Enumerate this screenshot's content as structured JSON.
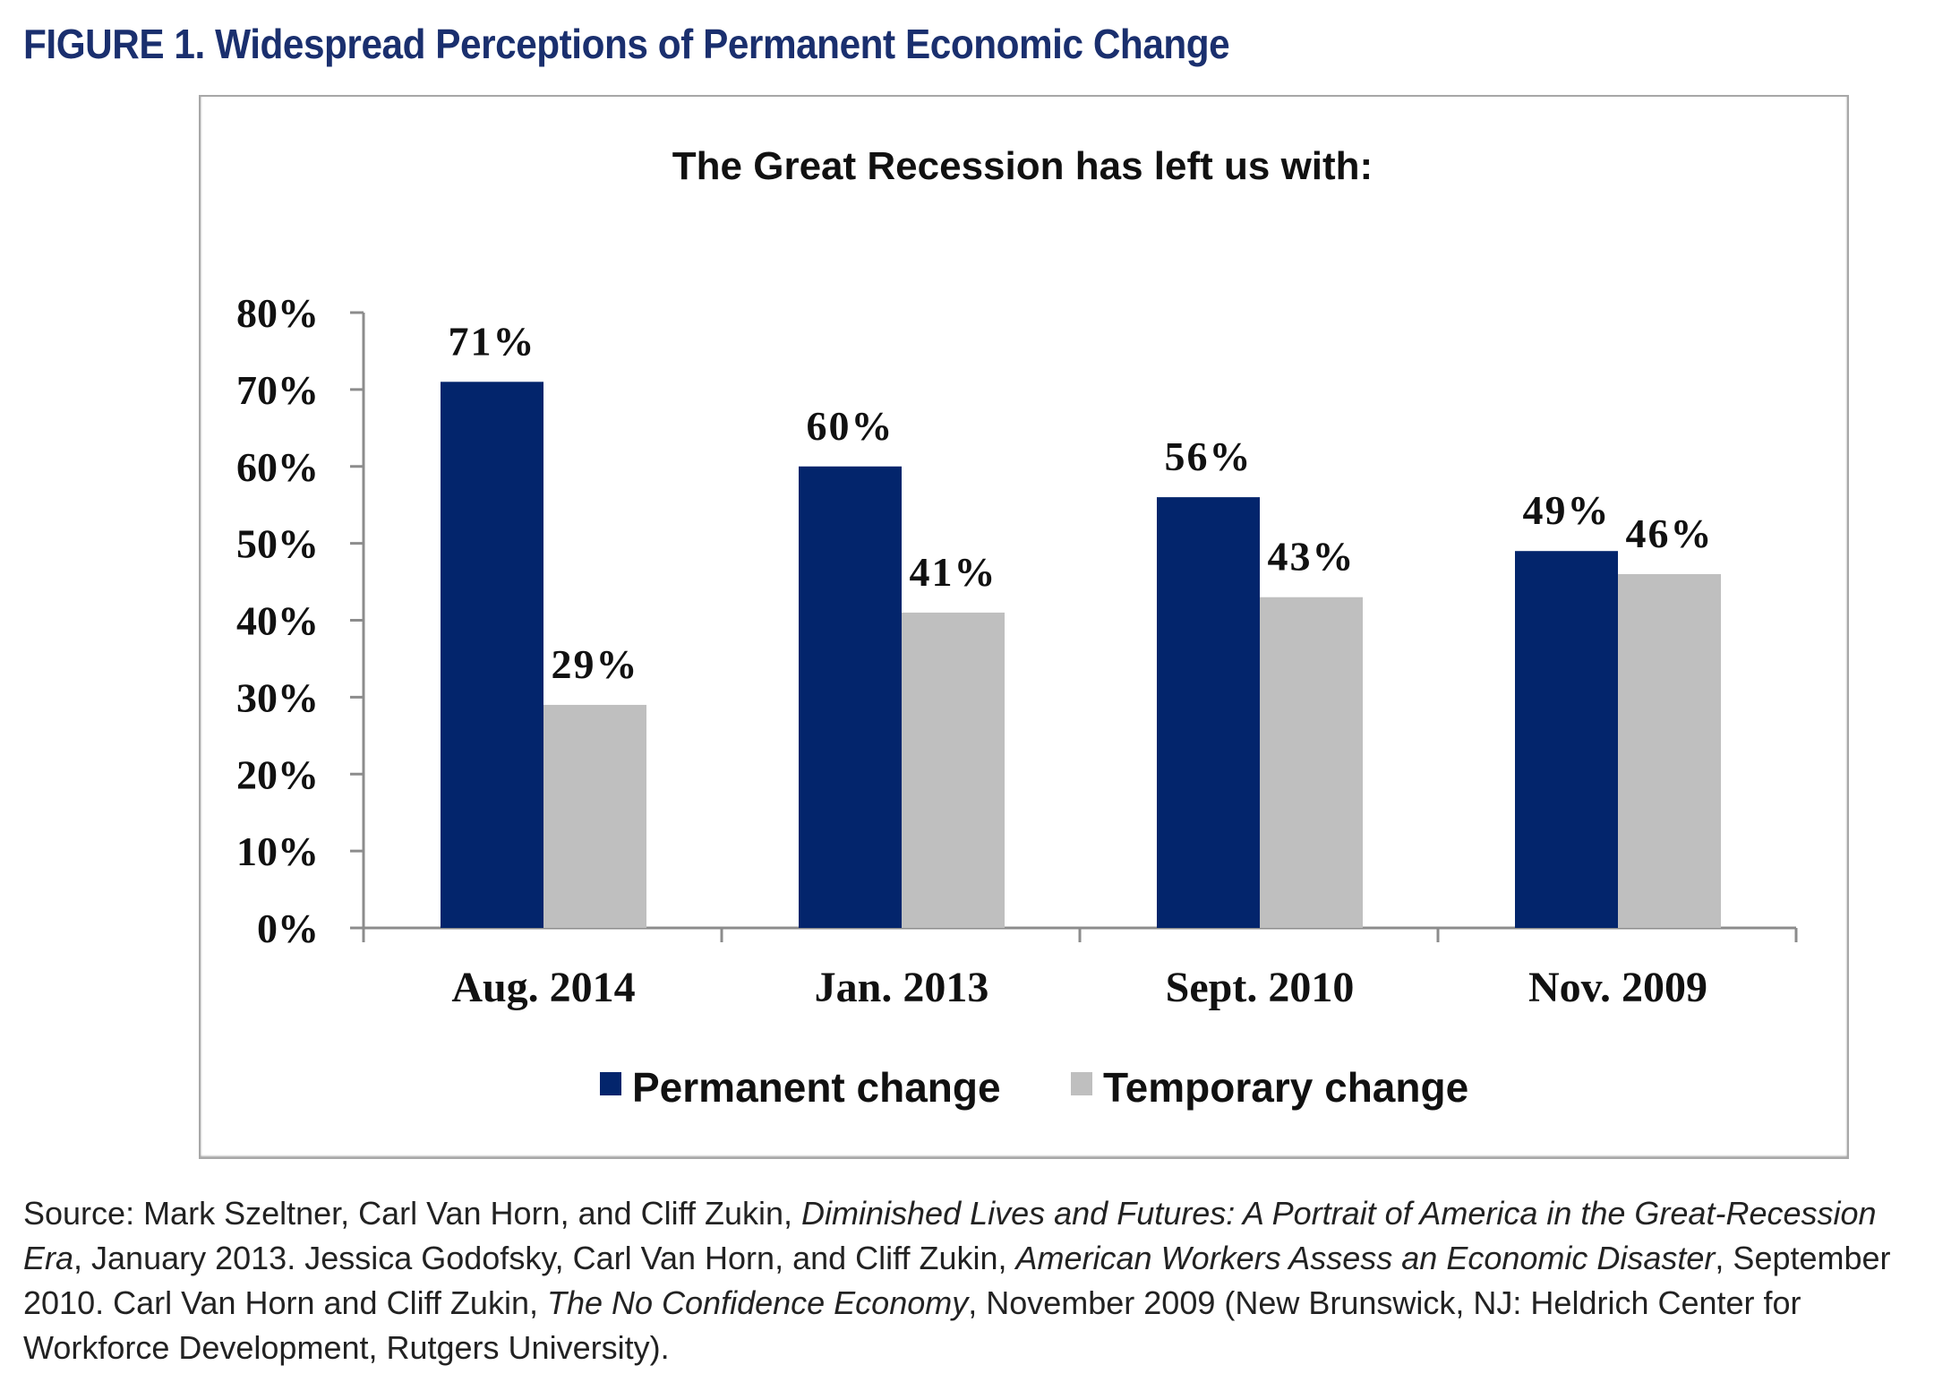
{
  "figure_title": "FIGURE 1. Widespread Perceptions of Permanent Economic Change",
  "colors": {
    "title": "#1a2f6e",
    "permanent": "#03256c",
    "temporary": "#bfbfbf",
    "axis": "#8c8c8c"
  },
  "chart_data": {
    "type": "bar",
    "title": "The Great Recession has left us with:",
    "xlabel": "",
    "ylabel": "",
    "categories": [
      "Aug. 2014",
      "Jan. 2013",
      "Sept. 2010",
      "Nov. 2009"
    ],
    "series": [
      {
        "name": "Permanent change",
        "values": [
          71,
          60,
          56,
          49
        ],
        "labels": [
          "71%",
          "60%",
          "56%",
          "49%"
        ]
      },
      {
        "name": "Temporary change",
        "values": [
          29,
          41,
          43,
          46
        ],
        "labels": [
          "29%",
          "41%",
          "43%",
          "46%"
        ]
      }
    ],
    "ylim": [
      0,
      80
    ],
    "yticks": [
      0,
      10,
      20,
      30,
      40,
      50,
      60,
      70,
      80
    ],
    "ytick_labels": [
      "0%",
      "10%",
      "20%",
      "30%",
      "40%",
      "50%",
      "60%",
      "70%",
      "80%"
    ],
    "grid": false,
    "legend_position": "bottom"
  },
  "source": {
    "parts": [
      {
        "text": "Source: Mark Szeltner, Carl Van Horn, and Cliff Zukin, ",
        "italic": false
      },
      {
        "text": "Diminished Lives and Futures: A Portrait of America in the Great-Recession Era",
        "italic": true
      },
      {
        "text": ", January 2013. Jessica Godofsky, Carl Van Horn, and Cliff Zukin, ",
        "italic": false
      },
      {
        "text": "American Workers Assess an Economic Disaster",
        "italic": true
      },
      {
        "text": ", September 2010. Carl Van Horn and Cliff Zukin, ",
        "italic": false
      },
      {
        "text": "The No Confidence Economy",
        "italic": true
      },
      {
        "text": ", November 2009 (New Brunswick, NJ: Heldrich Center for Workforce Development, Rutgers University).",
        "italic": false
      }
    ]
  }
}
